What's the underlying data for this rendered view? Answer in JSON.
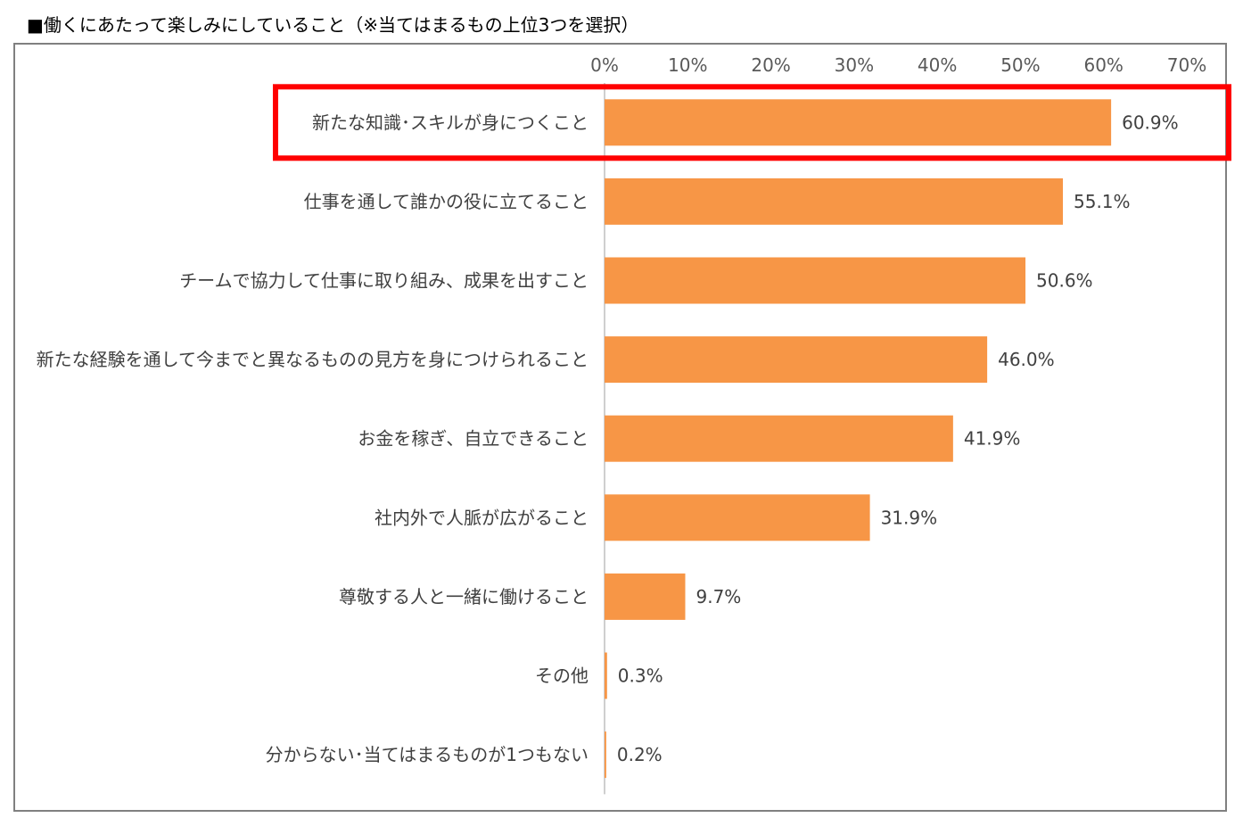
{
  "chart_data": {
    "type": "bar",
    "orientation": "horizontal",
    "title": "■働くにあたって楽しみにしていること（※当てはまるもの上位3つを選択）",
    "categories": [
      "新たな知識･スキルが身につくこと",
      "仕事を通して誰かの役に立てること",
      "チームで協力して仕事に取り組み、成果を出すこと",
      "新たな経験を通して今までと異なるものの見方を身につけられること",
      "お金を稼ぎ、自立できること",
      "社内外で人脈が広がること",
      "尊敬する人と一緒に働けること",
      "その他",
      "分からない･当てはまるものが1つもない"
    ],
    "values": [
      60.9,
      55.1,
      50.6,
      46.0,
      41.9,
      31.9,
      9.7,
      0.3,
      0.2
    ],
    "value_labels": [
      "60.9%",
      "55.1%",
      "50.6%",
      "46.0%",
      "41.9%",
      "31.9%",
      "9.7%",
      "0.3%",
      "0.2%"
    ],
    "xlim": [
      0,
      70
    ],
    "xticks": [
      "0%",
      "10%",
      "20%",
      "30%",
      "40%",
      "50%",
      "60%",
      "70%"
    ],
    "axis_position": "top",
    "grid": false,
    "bar_color": "#F79646",
    "highlight_color": "#FF0000",
    "highlight_index": 0
  }
}
